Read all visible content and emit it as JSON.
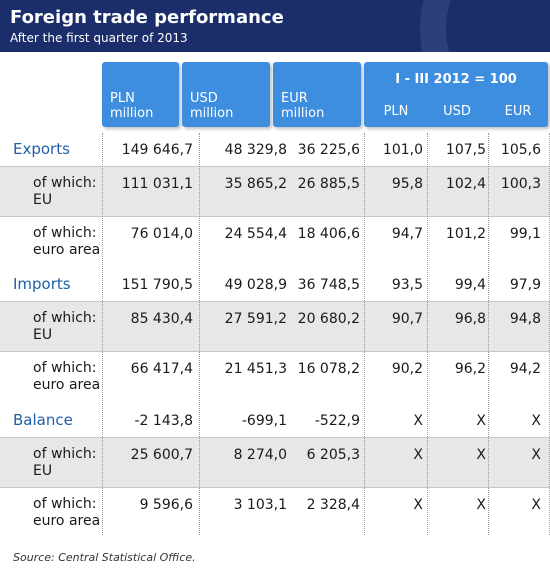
{
  "header": {
    "title": "Foreign trade performance",
    "subtitle": "After the first quarter of 2013"
  },
  "columns": {
    "pln": "PLN\nmillion",
    "usd": "USD\nmillion",
    "eur": "EUR\nmillion",
    "index_title": "I - III 2012 = 100",
    "idx_pln": "PLN",
    "idx_usd": "USD",
    "idx_eur": "EUR"
  },
  "rows": [
    {
      "label": "Exports",
      "pln": "149 646,7",
      "usd": "48 329,8",
      "eur": "36 225,6",
      "i_pln": "101,0",
      "i_usd": "107,5",
      "i_eur": "105,6"
    },
    {
      "label": "of which:\nEU",
      "pln": "111 031,1",
      "usd": "35 865,2",
      "eur": "26 885,5",
      "i_pln": "95,8",
      "i_usd": "102,4",
      "i_eur": "100,3"
    },
    {
      "label": "of which:\neuro area",
      "pln": "76 014,0",
      "usd": "24 554,4",
      "eur": "18 406,6",
      "i_pln": "94,7",
      "i_usd": "101,2",
      "i_eur": "99,1"
    },
    {
      "label": "Imports",
      "pln": "151 790,5",
      "usd": "49 028,9",
      "eur": "36 748,5",
      "i_pln": "93,5",
      "i_usd": "99,4",
      "i_eur": "97,9"
    },
    {
      "label": "of which:\nEU",
      "pln": "85 430,4",
      "usd": "27 591,2",
      "eur": "20 680,2",
      "i_pln": "90,7",
      "i_usd": "96,8",
      "i_eur": "94,8"
    },
    {
      "label": "of which:\neuro area",
      "pln": "66 417,4",
      "usd": "21 451,3",
      "eur": "16 078,2",
      "i_pln": "90,2",
      "i_usd": "96,2",
      "i_eur": "94,2"
    },
    {
      "label": "Balance",
      "pln": "-2 143,8",
      "usd": "-699,1",
      "eur": "-522,9",
      "i_pln": "X",
      "i_usd": "X",
      "i_eur": "X"
    },
    {
      "label": "of which:\nEU",
      "pln": "25 600,7",
      "usd": "8 274,0",
      "eur": "6 205,3",
      "i_pln": "X",
      "i_usd": "X",
      "i_eur": "X"
    },
    {
      "label": "of which:\neuro area",
      "pln": "9 596,6",
      "usd": "3 103,1",
      "eur": "2 328,4",
      "i_pln": "X",
      "i_usd": "X",
      "i_eur": "X"
    }
  ],
  "source": "Source: Central Statistical Office.",
  "colors": {
    "header_bg": "#1b2d6b",
    "accent": "#3e8ee0",
    "band": "#e6e7e8",
    "label": "#1f5fa8"
  }
}
